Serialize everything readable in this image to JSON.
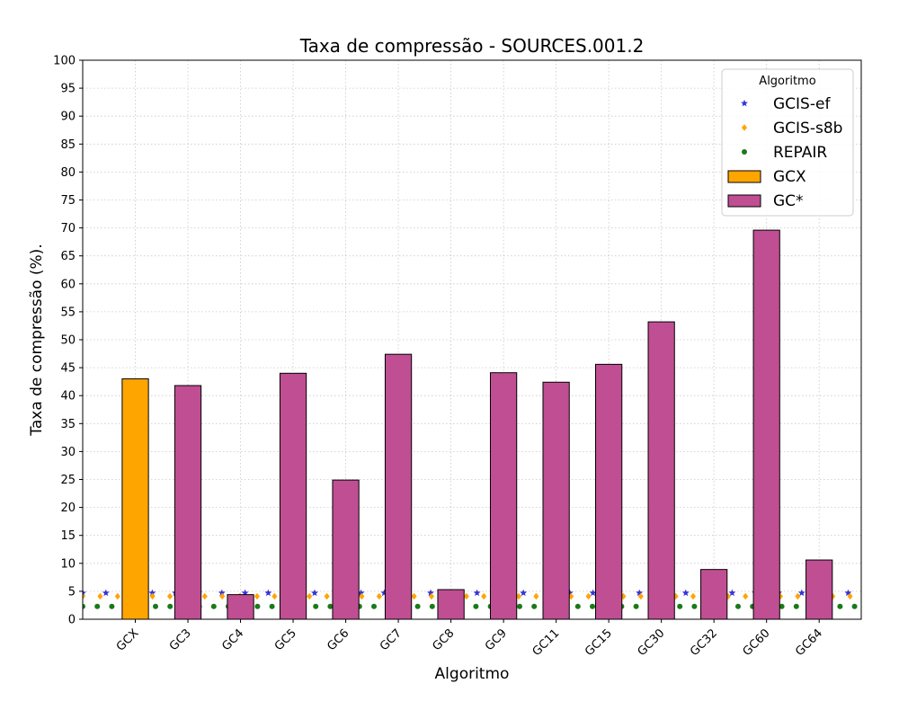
{
  "chart_data": {
    "type": "bar",
    "title": "Taxa de compressão -  SOURCES.001.2",
    "xlabel": "Algoritmo",
    "ylabel": "Taxa de compressão (%).",
    "ylim": [
      0,
      100
    ],
    "yticks": [
      0,
      5,
      10,
      15,
      20,
      25,
      30,
      35,
      40,
      45,
      50,
      55,
      60,
      65,
      70,
      75,
      80,
      85,
      90,
      95,
      100
    ],
    "grid": true,
    "legend": {
      "title": "Algoritmo",
      "placement": "top-right"
    },
    "categories": [
      "GCX",
      "GC3",
      "GC4",
      "GC5",
      "GC6",
      "GC7",
      "GC8",
      "GC9",
      "GC11",
      "GC15",
      "GC30",
      "GC32",
      "GC60",
      "GC64"
    ],
    "bar_series": [
      {
        "name": "GCX",
        "color": "#ffa500",
        "categories": [
          "GCX"
        ],
        "values": [
          43.0
        ]
      },
      {
        "name": "GC*",
        "color": "#c04e93",
        "categories": [
          "GC3",
          "GC4",
          "GC5",
          "GC6",
          "GC7",
          "GC8",
          "GC9",
          "GC11",
          "GC15",
          "GC30",
          "GC32",
          "GC60",
          "GC64"
        ],
        "values": [
          41.8,
          4.4,
          44.0,
          24.9,
          47.4,
          5.3,
          44.1,
          42.4,
          45.6,
          53.2,
          8.9,
          69.6,
          10.6
        ]
      }
    ],
    "reference_lines": [
      {
        "name": "GCIS-ef",
        "value": 4.7,
        "color": "#3333dd",
        "marker": "star"
      },
      {
        "name": "GCIS-s8b",
        "value": 4.1,
        "color": "#ffa500",
        "marker": "diamond"
      },
      {
        "name": "REPAIR",
        "value": 2.3,
        "color": "#1a7a1a",
        "marker": "circle"
      }
    ]
  }
}
